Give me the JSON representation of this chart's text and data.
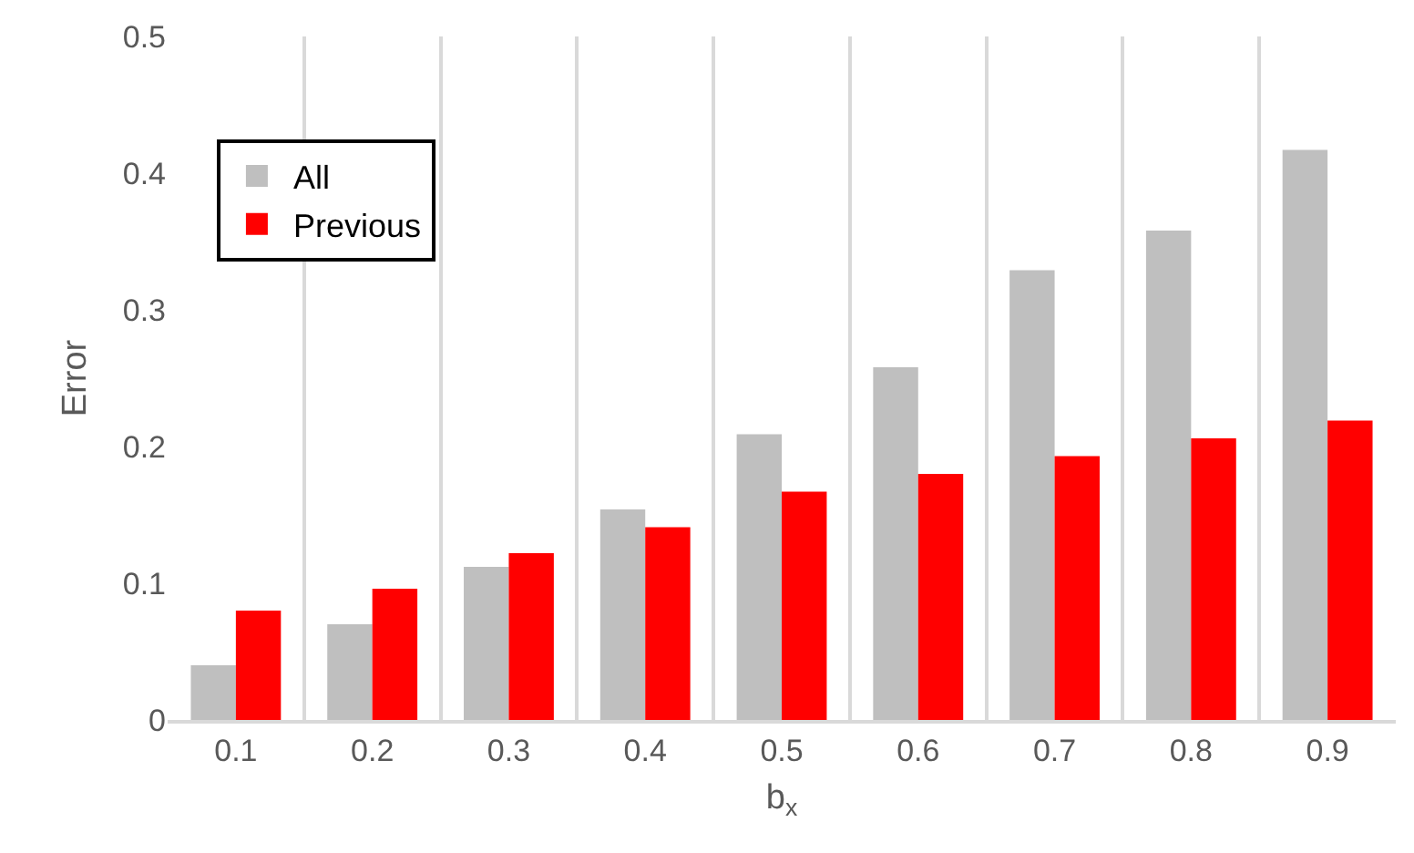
{
  "chart_data": {
    "type": "bar",
    "xlabel": "b$_{x}$",
    "ylabel": "Error",
    "categories": [
      "0.1",
      "0.2",
      "0.3",
      "0.4",
      "0.5",
      "0.6",
      "0.7",
      "0.8",
      "0.9"
    ],
    "series": [
      {
        "name": "All",
        "color": "#bfbfbf",
        "values": [
          0.04,
          0.07,
          0.112,
          0.154,
          0.209,
          0.258,
          0.329,
          0.358,
          0.417
        ]
      },
      {
        "name": "Previous",
        "color": "#ff0000",
        "values": [
          0.08,
          0.096,
          0.122,
          0.141,
          0.167,
          0.18,
          0.193,
          0.206,
          0.219
        ]
      }
    ],
    "ylim": [
      0,
      0.5
    ],
    "yticks": [
      {
        "value": 0,
        "label": "0"
      },
      0.1,
      0.2,
      0.3,
      0.4,
      0.5
    ],
    "grid": "x",
    "legend": "top left"
  }
}
